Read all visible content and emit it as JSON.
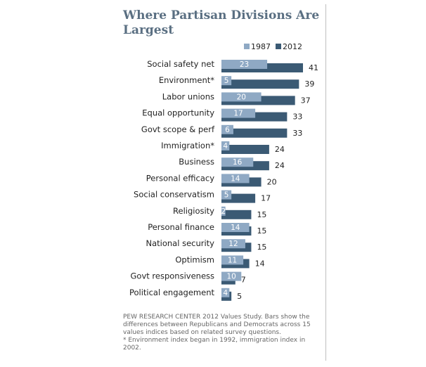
{
  "chart_data": {
    "type": "bar",
    "title": "Where Partisan Divisions Are Largest",
    "xlabel": "",
    "ylabel": "",
    "xlim": [
      0,
      41
    ],
    "categories": [
      "Social safety net",
      "Environment*",
      "Labor unions",
      "Equal opportunity",
      "Govt scope & perf",
      "Immigration*",
      "Business",
      "Personal efficacy",
      "Social conservatism",
      "Religiosity",
      "Personal finance",
      "National security",
      "Optimism",
      "Govt responsiveness",
      "Political engagement"
    ],
    "series": [
      {
        "name": "1987",
        "values": [
          23,
          5,
          20,
          17,
          6,
          4,
          16,
          14,
          5,
          2,
          14,
          12,
          11,
          10,
          4
        ]
      },
      {
        "name": "2012",
        "values": [
          41,
          39,
          37,
          33,
          33,
          24,
          24,
          20,
          17,
          15,
          15,
          15,
          14,
          7,
          5
        ]
      }
    ],
    "colors": {
      "1987": "#8fa9c4",
      "2012": "#3b5a74",
      "text": "#222222"
    },
    "legend": "top-right"
  },
  "footnote": {
    "source": "PEW RESEARCH CENTER 2012 Values Study. Bars show the differences between Republicans and Democrats across 15 values indices based on related survey questions.",
    "note": "* Environment index began in 1992, immigration index in 2002."
  }
}
